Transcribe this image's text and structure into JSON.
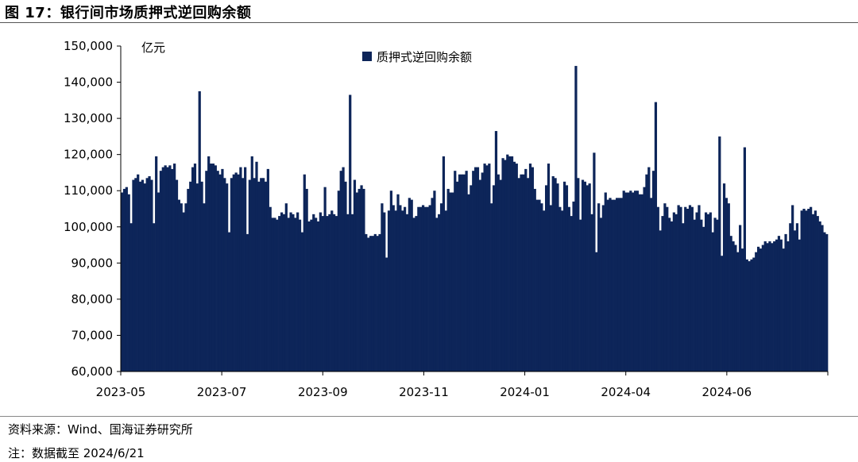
{
  "figure": {
    "title": "图 17：银行间市场质押式逆回购余额",
    "source": "资料来源：Wind、国海证券研究所",
    "note": "注：数据截至 2024/6/21"
  },
  "chart_data": {
    "type": "bar",
    "title": "",
    "ylabel": "亿元",
    "xlabel": "",
    "ylim": [
      60000,
      150000
    ],
    "yticks": [
      60000,
      70000,
      80000,
      90000,
      100000,
      110000,
      120000,
      130000,
      140000,
      150000
    ],
    "ytick_labels": [
      "60,000",
      "70,000",
      "80,000",
      "90,000",
      "100,000",
      "110,000",
      "120,000",
      "130,000",
      "140,000",
      "150,000"
    ],
    "xtick_labels": [
      "2023-05",
      "2023-07",
      "2023-09",
      "2023-11",
      "2024-01",
      "2024-04",
      "2024-06"
    ],
    "legend": {
      "position": "top-center",
      "entries": [
        "质押式逆回购余额"
      ]
    },
    "grid": false,
    "colors": {
      "bar": "#0d2559",
      "axis": "#000000"
    },
    "series": [
      {
        "name": "质押式逆回购余额",
        "values": [
          109500,
          110500,
          111000,
          109000,
          101000,
          113000,
          113500,
          114500,
          112500,
          113000,
          112000,
          113500,
          114000,
          113000,
          101000,
          119500,
          109500,
          115500,
          116500,
          117000,
          116500,
          117000,
          116000,
          117500,
          113000,
          107500,
          106500,
          104000,
          106500,
          110500,
          112500,
          116500,
          117500,
          112000,
          137500,
          112500,
          106500,
          115500,
          119500,
          117500,
          117500,
          117000,
          115500,
          114500,
          116000,
          113500,
          112000,
          98500,
          113500,
          114500,
          115000,
          114500,
          116500,
          113500,
          116500,
          98000,
          113000,
          119500,
          113500,
          118000,
          112500,
          113500,
          113500,
          112500,
          116000,
          105500,
          102500,
          102500,
          102000,
          103000,
          104000,
          103500,
          106500,
          102500,
          104000,
          103500,
          102500,
          104000,
          102000,
          98500,
          114500,
          110500,
          101500,
          102000,
          103500,
          102500,
          101500,
          104000,
          103000,
          111000,
          103000,
          103500,
          104500,
          103500,
          103000,
          110000,
          115500,
          116500,
          112500,
          103500,
          136500,
          103500,
          113000,
          109500,
          110500,
          111500,
          110500,
          98000,
          97000,
          97500,
          97500,
          98000,
          97500,
          98000,
          106500,
          104000,
          91500,
          104500,
          110000,
          106000,
          104500,
          109000,
          106000,
          104500,
          105500,
          103500,
          108000,
          107500,
          102500,
          103000,
          105500,
          105500,
          106000,
          105500,
          105500,
          106000,
          108000,
          110000,
          102500,
          103500,
          106500,
          119500,
          104500,
          110500,
          109500,
          109500,
          115500,
          112500,
          114500,
          114500,
          114500,
          115500,
          109000,
          111500,
          115500,
          116500,
          116500,
          113000,
          115000,
          117500,
          117000,
          117500,
          106500,
          111500,
          126500,
          114500,
          113000,
          119000,
          118500,
          120000,
          119500,
          119500,
          118000,
          117500,
          113500,
          114500,
          114500,
          116000,
          113500,
          117500,
          116500,
          110500,
          107500,
          107500,
          106500,
          104500,
          111500,
          117500,
          106000,
          114000,
          113500,
          112000,
          105500,
          104500,
          112500,
          111500,
          105500,
          103000,
          107000,
          144500,
          113500,
          102000,
          113000,
          112500,
          111500,
          112000,
          103500,
          120500,
          93000,
          106500,
          102500,
          106000,
          109500,
          107500,
          108000,
          107500,
          107500,
          108000,
          108000,
          108000,
          110000,
          109500,
          109500,
          110000,
          109500,
          110000,
          110000,
          109000,
          109000,
          111000,
          114500,
          116500,
          108000,
          115500,
          134500,
          105500,
          99000,
          103000,
          106500,
          105500,
          102500,
          101500,
          104000,
          103500,
          106000,
          105500,
          101000,
          105500,
          105000,
          106000,
          105500,
          102000,
          104000,
          106000,
          102000,
          100000,
          104000,
          103500,
          104000,
          98500,
          102500,
          102000,
          125000,
          92000,
          112000,
          108000,
          106500,
          97500,
          96000,
          95000,
          93000,
          100500,
          94000,
          122000,
          91000,
          90500,
          91000,
          91500,
          93000,
          94500,
          94000,
          95000,
          96000,
          95500,
          96000,
          95500,
          96000,
          96500,
          97500,
          96500,
          94000,
          98000,
          96000,
          101000,
          106000,
          99000,
          101000,
          96500,
          104500,
          105000,
          104500,
          105000,
          105500,
          103500,
          104500,
          103000,
          101500,
          100500,
          98500,
          98000
        ]
      }
    ]
  }
}
